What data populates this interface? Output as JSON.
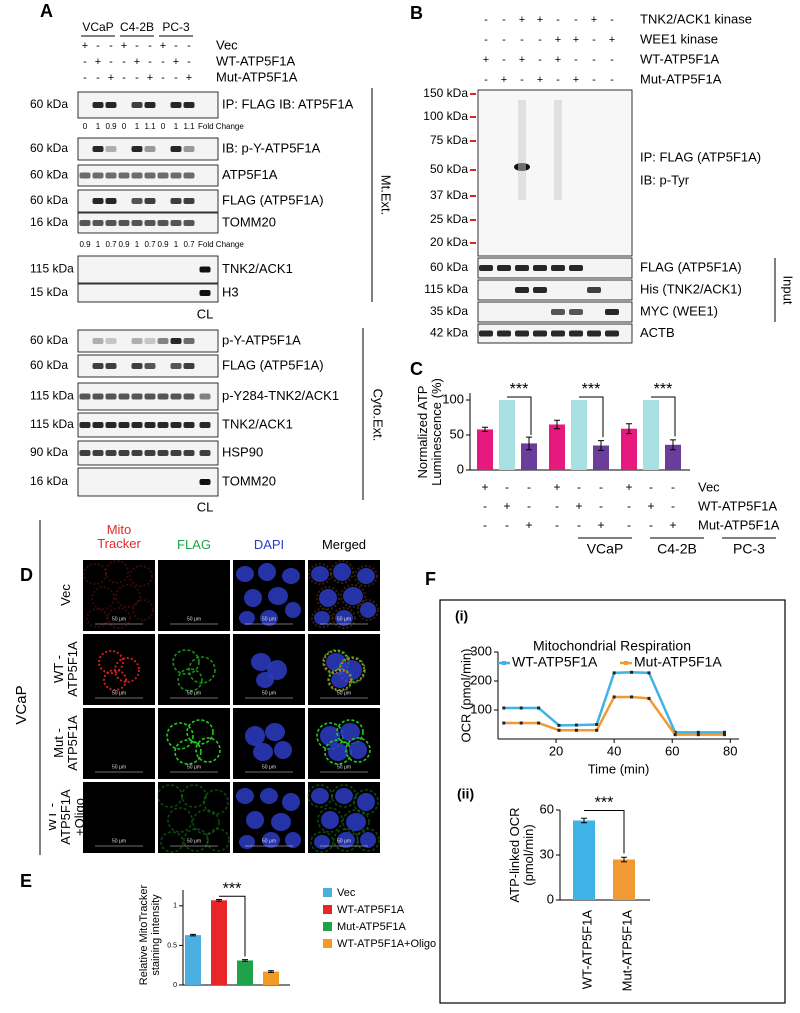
{
  "panel_a": {
    "label": "A",
    "groups": [
      "VCaP",
      "C4-2B",
      "PC-3"
    ],
    "conditions": [
      {
        "name": "Vec",
        "signs": [
          "+",
          "-",
          "-",
          "+",
          "-",
          "-",
          "+",
          "-",
          "-"
        ]
      },
      {
        "name": "WT-ATP5F1A",
        "signs": [
          "-",
          "+",
          "-",
          "-",
          "+",
          "-",
          "-",
          "+",
          "-"
        ]
      },
      {
        "name": "Mut-ATP5F1A",
        "signs": [
          "-",
          "-",
          "+",
          "-",
          "-",
          "+",
          "-",
          "-",
          "+"
        ]
      }
    ],
    "mito_blots": [
      {
        "kda": "60 kDa",
        "label": "IP: FLAG IB: ATP5F1A"
      },
      {
        "kda": "60 kDa",
        "label": "IB: p-Y-ATP5F1A"
      },
      {
        "kda": "60 kDa",
        "label": "ATP5F1A"
      },
      {
        "kda": "60 kDa",
        "label": "FLAG (ATP5F1A)"
      },
      {
        "kda": "16 kDa",
        "label": "TOMM20"
      },
      {
        "kda": "115 kDa",
        "label": "TNK2/ACK1"
      },
      {
        "kda": "15 kDa",
        "label": "H3"
      }
    ],
    "fold_change_1": {
      "values": [
        0,
        1,
        0.9,
        0,
        1,
        1.1,
        0,
        1,
        1.1
      ],
      "label": "Fold Change"
    },
    "fold_change_2": {
      "values": [
        0.9,
        1,
        0.7,
        0.9,
        1,
        0.7,
        0.9,
        1,
        0.7
      ],
      "label": "Fold Change"
    },
    "mito_cl": "CL",
    "mito_fraction": "Mt.Ext.",
    "cyto_blots": [
      {
        "kda": "60 kDa",
        "label": "p-Y-ATP5F1A"
      },
      {
        "kda": "60 kDa",
        "label": "FLAG (ATP5F1A)"
      },
      {
        "kda": "115 kDa",
        "label": "p-Y284-TNK2/ACK1"
      },
      {
        "kda": "115 kDa",
        "label": "TNK2/ACK1"
      },
      {
        "kda": "90 kDa",
        "label": "HSP90"
      },
      {
        "kda": "16 kDa",
        "label": "TOMM20"
      }
    ],
    "cyto_cl": "CL",
    "cyto_fraction": "Cyto.Ext."
  },
  "panel_b": {
    "label": "B",
    "conditions": [
      {
        "name": "TNK2/ACK1 kinase",
        "signs": [
          "-",
          "-",
          "+",
          "+",
          "-",
          "-",
          "+",
          "-"
        ]
      },
      {
        "name": "WEE1 kinase",
        "signs": [
          "-",
          "-",
          "-",
          "-",
          "+",
          "+",
          "-",
          "+"
        ]
      },
      {
        "name": "WT-ATP5F1A",
        "signs": [
          "+",
          "-",
          "+",
          "-",
          "+",
          "-",
          "-",
          "-"
        ]
      },
      {
        "name": "Mut-ATP5F1A",
        "signs": [
          "-",
          "+",
          "-",
          "+",
          "-",
          "+",
          "-",
          "-"
        ]
      }
    ],
    "ladder": [
      "150 kDa",
      "100 kDa",
      "75 kDa",
      "50 kDa",
      "37 kDa",
      "25 kDa",
      "20 kDa"
    ],
    "ip_labels": [
      "IP: FLAG (ATP5F1A)",
      "IB: p-Tyr"
    ],
    "input_blots": [
      {
        "kda": "60 kDa",
        "label": "FLAG (ATP5F1A)"
      },
      {
        "kda": "115 kDa",
        "label": "His (TNK2/ACK1)"
      },
      {
        "kda": "35 kDa",
        "label": "MYC (WEE1)"
      },
      {
        "kda": "42 kDa",
        "label": "ACTB"
      }
    ],
    "input_label": "Input"
  },
  "panel_d": {
    "label": "D",
    "columns": [
      {
        "text": "Mito Tracker",
        "color": "#e8262a"
      },
      {
        "text": "FLAG",
        "color": "#1ea34a"
      },
      {
        "text": "DAPI",
        "color": "#2a3cc8"
      },
      {
        "text": "Merged",
        "color": "#000000"
      }
    ],
    "rows": [
      "Vec",
      "WT -ATP5F1A",
      "Mut -ATP5F1A",
      "WT -ATP5F1A +Oligo"
    ],
    "cell_line": "VCaP",
    "scale_bar": "50 μm"
  },
  "panel_f": {
    "label": "F"
  },
  "chart_data": [
    {
      "type": "bar",
      "panel_label": "C",
      "ylabel": "Normalized ATP Luminescence (%)",
      "ylim": [
        0,
        110
      ],
      "yticks": [
        0,
        50,
        100
      ],
      "categories": [
        "VCaP",
        "C4-2B",
        "PC-3"
      ],
      "series": [
        {
          "name": "Vec",
          "color": "#e6197f",
          "values": [
            58,
            65,
            59
          ],
          "errors": [
            3,
            6,
            7
          ],
          "signs": [
            "+",
            "-",
            "-",
            "+",
            "-",
            "-",
            "+",
            "-",
            "-"
          ]
        },
        {
          "name": "WT-ATP5F1A",
          "color": "#a8e0e2",
          "values": [
            100,
            100,
            100
          ],
          "signs": [
            "-",
            "+",
            "-",
            "-",
            "+",
            "-",
            "-",
            "+",
            "-"
          ]
        },
        {
          "name": "Mut-ATP5F1A",
          "color": "#6a3d9a",
          "values": [
            38,
            35,
            36
          ],
          "errors": [
            9,
            7,
            7
          ],
          "signs": [
            "-",
            "-",
            "+",
            "-",
            "-",
            "+",
            "-",
            "-",
            "+"
          ]
        }
      ],
      "annotations": [
        "***",
        "***",
        "***"
      ]
    },
    {
      "type": "bar",
      "panel_label": "E",
      "ylabel": "Relative MitoTracker staining intensity",
      "ylim": [
        0,
        1.2
      ],
      "yticks": [
        0,
        0.5,
        1
      ],
      "series": [
        {
          "name": "Vec",
          "color": "#4bafe0",
          "values": [
            0.63
          ],
          "errors": [
            0.01
          ]
        },
        {
          "name": "WT-ATP5F1A",
          "color": "#e8262a",
          "values": [
            1.07
          ],
          "errors": [
            0.01
          ]
        },
        {
          "name": "Mut-ATP5F1A",
          "color": "#1ea34a",
          "values": [
            0.31
          ],
          "errors": [
            0.01
          ]
        },
        {
          "name": "WT-ATP5F1A+Oligo",
          "color": "#f39a26",
          "values": [
            0.17
          ],
          "errors": [
            0.01
          ]
        }
      ],
      "annotations": [
        "***"
      ]
    },
    {
      "type": "line",
      "panel_label": "(i)",
      "title": "Mitochondrial Respiration",
      "xlabel": "Time (min)",
      "ylabel": "OCR (pmol/min)",
      "xlim": [
        0,
        83
      ],
      "xticks": [
        20,
        40,
        60,
        80
      ],
      "ylim": [
        0,
        300
      ],
      "yticks": [
        100,
        200,
        300
      ],
      "x": [
        2,
        8,
        14,
        21,
        27,
        34,
        40,
        46,
        52,
        61,
        69,
        78
      ],
      "series": [
        {
          "name": "WT-ATP5F1A",
          "color": "#3fb3e6",
          "values": [
            107,
            107,
            107,
            47,
            48,
            50,
            228,
            230,
            228,
            23,
            23,
            23
          ]
        },
        {
          "name": "Mut-ATP5F1A",
          "color": "#f19a33",
          "values": [
            55,
            55,
            55,
            30,
            30,
            30,
            145,
            145,
            140,
            15,
            15,
            15
          ]
        }
      ]
    },
    {
      "type": "bar",
      "panel_label": "(ii)",
      "ylabel": "ATP-linked OCR (pmol/min)",
      "ylim": [
        0,
        60
      ],
      "yticks": [
        0,
        30,
        60
      ],
      "categories": [
        "WT-ATP5F1A",
        "Mut-ATP5F1A"
      ],
      "values": [
        53,
        27
      ],
      "errors": [
        1.5,
        1.5
      ],
      "colors": [
        "#3fb3e6",
        "#f19a33"
      ],
      "annotations": [
        "***"
      ]
    }
  ]
}
